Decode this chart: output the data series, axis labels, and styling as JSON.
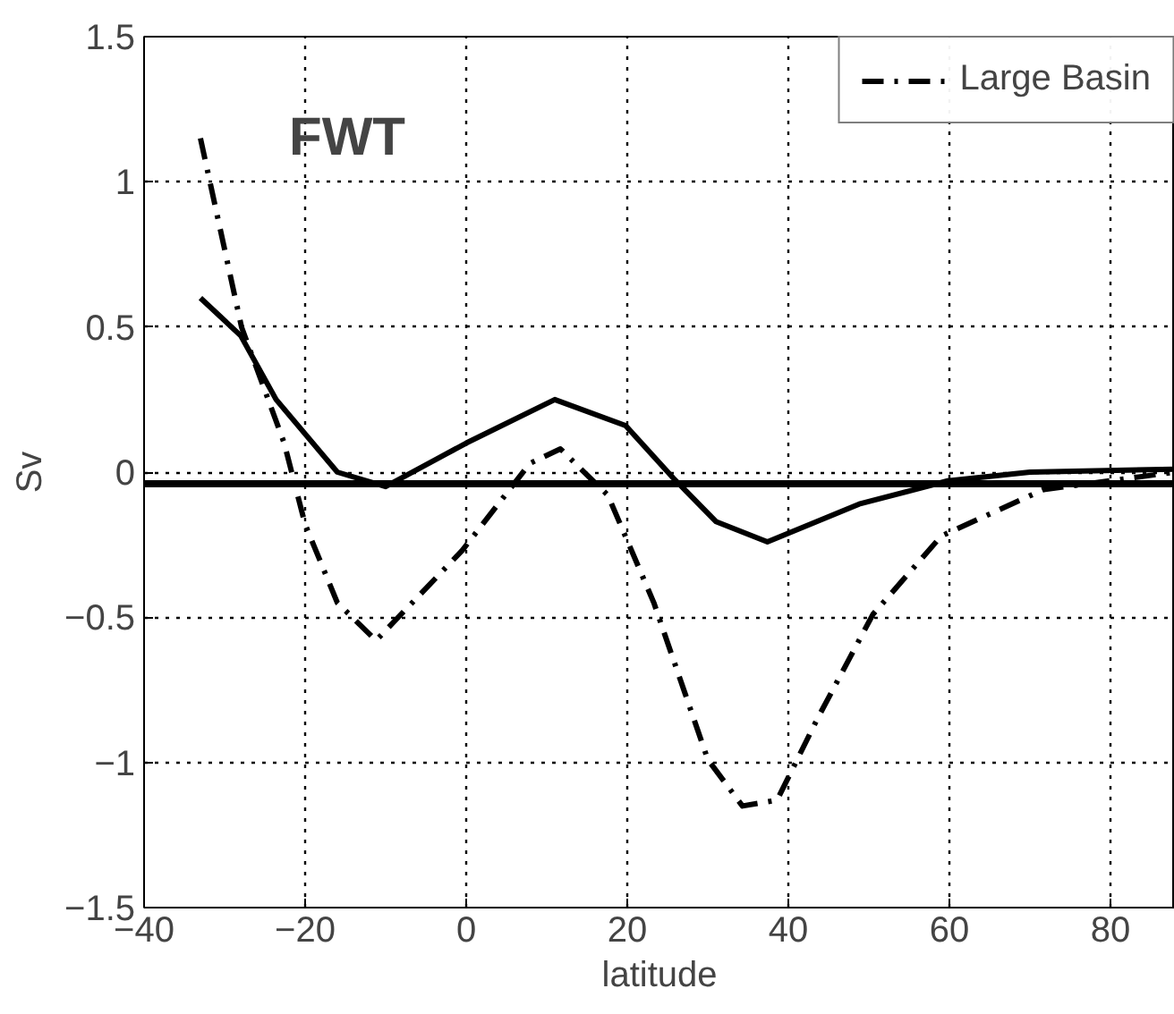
{
  "chart_data": {
    "type": "line",
    "xlabel": "latitude",
    "ylabel": "Sv",
    "xlim": [
      -40,
      88
    ],
    "ylim": [
      -1.5,
      1.5
    ],
    "xticks": [
      -40,
      -20,
      0,
      20,
      40,
      60,
      80
    ],
    "yticks": [
      1.5,
      1,
      0.5,
      0,
      -0.5,
      -1,
      -1.5
    ],
    "grid": true,
    "legend": "top right",
    "annotations": [
      "FWT"
    ],
    "ref_lines": [
      {
        "axis": "y",
        "value": -0.04,
        "color": "#000000"
      }
    ],
    "series": [
      {
        "color": "#000000",
        "line_style": "solid",
        "x": [
          -33,
          -28,
          -23.6,
          -16,
          -10,
          0,
          11,
          19.8,
          25.7,
          31,
          37.4,
          48.8,
          59.8,
          70,
          88
        ],
        "values": [
          0.6,
          0.47,
          0.25,
          0.0,
          -0.05,
          0.1,
          0.25,
          0.16,
          -0.02,
          -0.17,
          -0.24,
          -0.11,
          -0.03,
          0.0,
          0.01
        ]
      },
      {
        "name": "Large Basin",
        "color": "#000000",
        "line_style": "dashdot",
        "x": [
          -33,
          -27.9,
          -22.6,
          -20,
          -16,
          -11.2,
          -0.5,
          7.9,
          11.7,
          17.6,
          23.3,
          30,
          34.3,
          38.6,
          43.6,
          50.5,
          59,
          71.7,
          88
        ],
        "values": [
          1.15,
          0.5,
          0.1,
          -0.18,
          -0.45,
          -0.58,
          -0.27,
          0.03,
          0.08,
          -0.08,
          -0.45,
          -0.99,
          -1.15,
          -1.13,
          -0.85,
          -0.49,
          -0.22,
          -0.06,
          0.0
        ]
      }
    ]
  }
}
